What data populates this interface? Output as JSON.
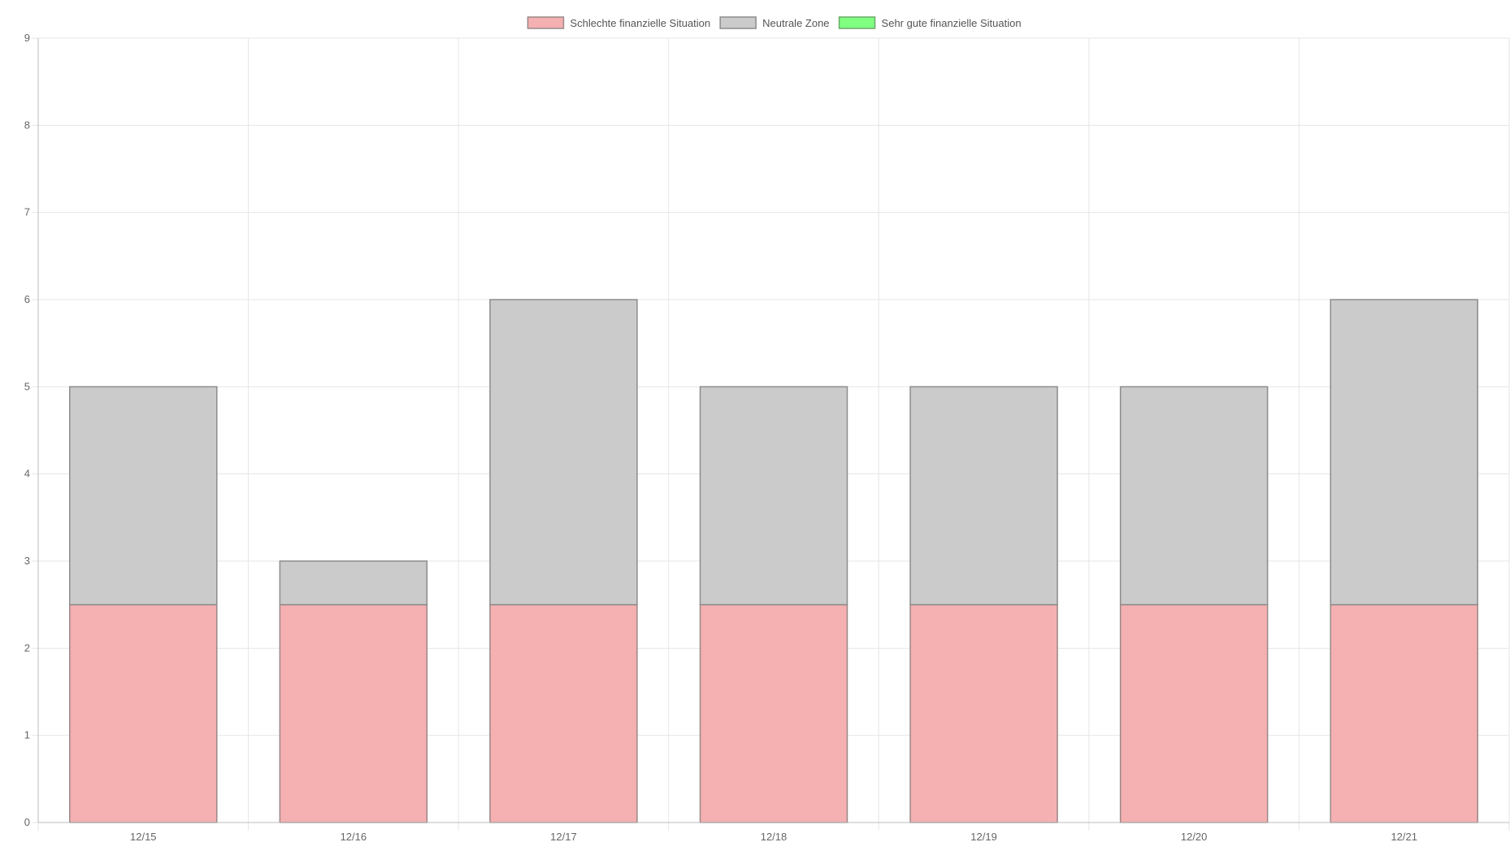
{
  "chart_data": {
    "type": "bar",
    "stacked": true,
    "title": "",
    "xlabel": "",
    "ylabel": "",
    "ylim": [
      0,
      9
    ],
    "yticks": [
      "0",
      "1",
      "2",
      "3",
      "4",
      "5",
      "6",
      "7",
      "8",
      "9"
    ],
    "categories": [
      "12/15",
      "12/16",
      "12/17",
      "12/18",
      "12/19",
      "12/20",
      "12/21"
    ],
    "grid": true,
    "legend_position": "top-center",
    "series": [
      {
        "name": "Schlechte finanzielle Situation",
        "values": [
          2.5,
          2.5,
          2.5,
          2.5,
          2.5,
          2.5,
          2.5
        ],
        "color": "#f5b0b1",
        "border_color": "#9a8888"
      },
      {
        "name": "Neutrale Zone",
        "values": [
          2.5,
          0.5,
          3.5,
          2.5,
          2.5,
          2.5,
          3.5
        ],
        "color": "#cbcbcb",
        "border_color": "#8c8c8c"
      },
      {
        "name": "Sehr gute finanzielle Situation",
        "values": [
          0,
          0,
          0,
          0,
          0,
          0,
          0
        ],
        "color": "#80ff80",
        "border_color": "#6aa86a"
      }
    ]
  }
}
